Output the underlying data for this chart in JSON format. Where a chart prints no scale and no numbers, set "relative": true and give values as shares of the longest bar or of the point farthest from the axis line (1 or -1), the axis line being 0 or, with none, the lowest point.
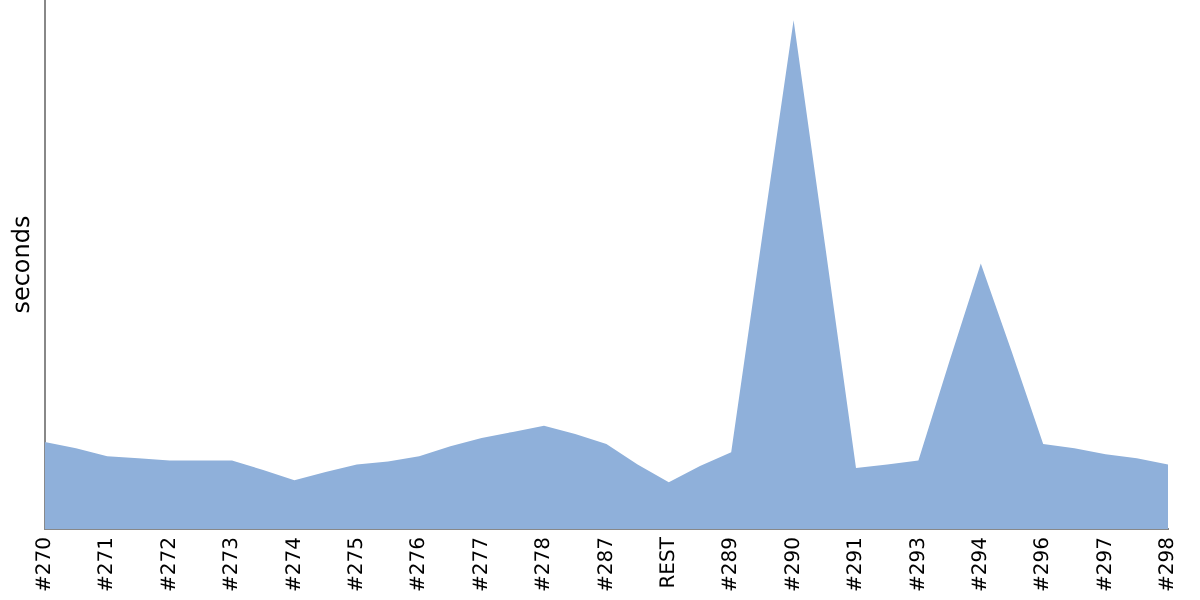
{
  "chart_data": {
    "type": "area",
    "ylabel": "seconds",
    "relative": true,
    "grid": false,
    "legend": false,
    "categories": [
      "#270",
      null,
      "#271",
      null,
      "#272",
      null,
      "#273",
      null,
      "#274",
      null,
      "#275",
      null,
      "#276",
      null,
      "#277",
      null,
      "#278",
      null,
      "#287",
      null,
      "REST",
      null,
      "#289",
      null,
      "#290",
      null,
      "#291",
      null,
      "#293",
      null,
      "#294",
      null,
      "#296",
      null,
      "#297",
      null,
      "#298"
    ],
    "series": [
      {
        "color": "#8fb0da",
        "values": [
          0.171,
          0.159,
          0.143,
          0.139,
          0.135,
          0.135,
          0.135,
          0.116,
          0.096,
          0.112,
          0.127,
          0.133,
          0.143,
          0.163,
          0.179,
          0.191,
          0.203,
          0.187,
          0.167,
          0.127,
          0.092,
          0.124,
          0.151,
          0.578,
          1,
          0.562,
          0.12,
          0.127,
          0.135,
          0.331,
          0.522,
          0.347,
          0.167,
          0.159,
          0.147,
          0.139,
          0.127
        ]
      }
    ]
  }
}
